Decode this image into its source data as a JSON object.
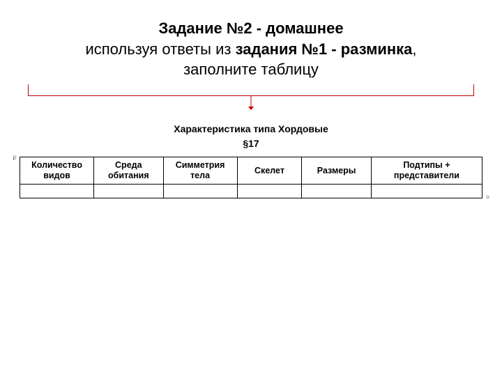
{
  "heading": {
    "line1_bold": "Задание №2 - домашнее",
    "line2_pre": "используя ответы из ",
    "line2_bold": "задания №1 - разминка",
    "line2_post": ",",
    "line3": "заполните таблицу"
  },
  "bracket": {
    "color": "#c00000"
  },
  "table_section": {
    "title_line1": "Характеристика типа Хордовые",
    "title_line2": "§17"
  },
  "table": {
    "columns": [
      {
        "label": "Количество видов",
        "width_pct": 16
      },
      {
        "label": "Среда обитания",
        "width_pct": 15
      },
      {
        "label": "Симметрия тела",
        "width_pct": 16
      },
      {
        "label": "Скелет",
        "width_pct": 14
      },
      {
        "label": "Размеры",
        "width_pct": 15
      },
      {
        "label": "Подтипы + представители",
        "width_pct": 24
      }
    ],
    "rows": [
      [
        "",
        "",
        "",
        "",
        "",
        ""
      ]
    ],
    "border_color": "#000000",
    "header_font_weight": 700,
    "font_size_pt": 9
  },
  "markers": {
    "tl": "₽",
    "br": "¤"
  }
}
